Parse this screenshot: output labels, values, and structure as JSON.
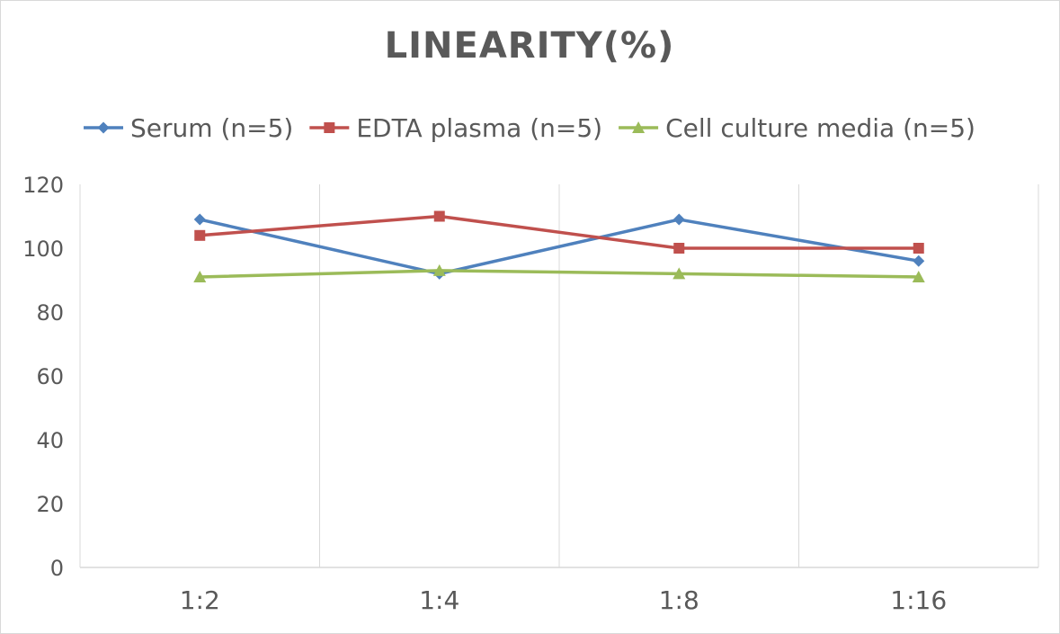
{
  "chart_data": {
    "type": "line",
    "title": "LINEARITY(%)",
    "xlabel": "",
    "ylabel": "",
    "categories": [
      "1:2",
      "1:4",
      "1:8",
      "1:16"
    ],
    "ylim": [
      0,
      120
    ],
    "yticks": [
      0,
      20,
      40,
      60,
      80,
      100,
      120
    ],
    "grid": "vertical",
    "legend_position": "top",
    "series": [
      {
        "name": "Serum (n=5)",
        "values": [
          109,
          92,
          109,
          96
        ],
        "color": "#4f81bd",
        "marker": "diamond"
      },
      {
        "name": "EDTA plasma (n=5)",
        "values": [
          104,
          110,
          100,
          100
        ],
        "color": "#c0504d",
        "marker": "square"
      },
      {
        "name": "Cell culture media (n=5)",
        "values": [
          91,
          93,
          92,
          91
        ],
        "color": "#9bbb59",
        "marker": "triangle"
      }
    ]
  }
}
